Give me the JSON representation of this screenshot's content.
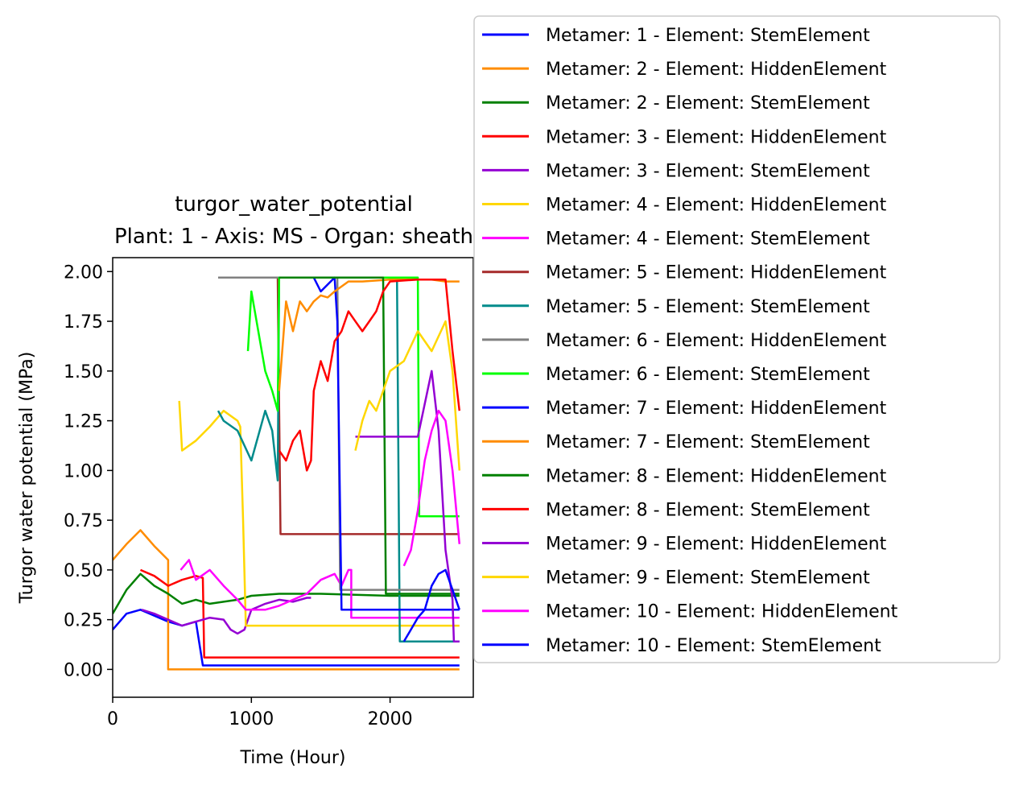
{
  "chart_data": {
    "type": "line",
    "title": "turgor_water_potential",
    "subtitle": "Plant: 1 - Axis: MS - Organ: sheath",
    "xlabel": "Time (Hour)",
    "ylabel": "Turgor water potential (MPa)",
    "xlim": [
      0,
      2600
    ],
    "ylim": [
      -0.14,
      2.07
    ],
    "xticks": [
      0,
      1000,
      2000
    ],
    "yticks": [
      0.0,
      0.25,
      0.5,
      0.75,
      1.0,
      1.25,
      1.5,
      1.75,
      2.0
    ],
    "xtick_labels": [
      "0",
      "1000",
      "2000"
    ],
    "ytick_labels": [
      "0.00",
      "0.25",
      "0.50",
      "0.75",
      "1.00",
      "1.25",
      "1.50",
      "1.75",
      "2.00"
    ],
    "grid": false,
    "legend_position": "right-outside-top",
    "series": [
      {
        "name": "Metamer: 1 - Element: StemElement",
        "color": "#0000ff",
        "points": [
          [
            0,
            0.2
          ],
          [
            100,
            0.28
          ],
          [
            200,
            0.3
          ],
          [
            300,
            0.27
          ],
          [
            400,
            0.24
          ],
          [
            500,
            0.22
          ],
          [
            600,
            0.24
          ],
          [
            650,
            0.02
          ],
          [
            700,
            0.02
          ],
          [
            2500,
            0.02
          ]
        ]
      },
      {
        "name": "Metamer: 2 - Element: HiddenElement",
        "color": "#ff8c00",
        "points": [
          [
            0,
            0.55
          ],
          [
            100,
            0.63
          ],
          [
            200,
            0.7
          ],
          [
            300,
            0.62
          ],
          [
            400,
            0.55
          ],
          [
            400,
            0.0
          ],
          [
            2500,
            0.0
          ]
        ]
      },
      {
        "name": "Metamer: 2 - Element: StemElement",
        "color": "#008000",
        "points": [
          [
            0,
            0.28
          ],
          [
            100,
            0.4
          ],
          [
            200,
            0.48
          ],
          [
            300,
            0.42
          ],
          [
            400,
            0.38
          ],
          [
            500,
            0.33
          ],
          [
            600,
            0.35
          ],
          [
            700,
            0.33
          ],
          [
            800,
            0.34
          ],
          [
            900,
            0.35
          ],
          [
            1000,
            0.37
          ],
          [
            1200,
            0.38
          ],
          [
            1500,
            0.38
          ],
          [
            2000,
            0.37
          ],
          [
            2500,
            0.37
          ]
        ]
      },
      {
        "name": "Metamer: 3 - Element: HiddenElement",
        "color": "#ff0000",
        "points": [
          [
            200,
            0.5
          ],
          [
            300,
            0.47
          ],
          [
            400,
            0.42
          ],
          [
            500,
            0.45
          ],
          [
            600,
            0.47
          ],
          [
            650,
            0.46
          ],
          [
            660,
            0.06
          ],
          [
            2500,
            0.06
          ]
        ]
      },
      {
        "name": "Metamer: 3 - Element: StemElement",
        "color": "#9400d3",
        "points": [
          [
            210,
            0.3
          ],
          [
            300,
            0.28
          ],
          [
            400,
            0.25
          ],
          [
            500,
            0.22
          ],
          [
            600,
            0.24
          ],
          [
            700,
            0.26
          ],
          [
            800,
            0.25
          ],
          [
            850,
            0.2
          ],
          [
            900,
            0.18
          ],
          [
            950,
            0.2
          ],
          [
            1000,
            0.3
          ],
          [
            1100,
            0.33
          ],
          [
            1200,
            0.35
          ],
          [
            1300,
            0.34
          ],
          [
            1400,
            0.36
          ],
          [
            1430,
            0.36
          ]
        ]
      },
      {
        "name": "Metamer: 4 - Element: HiddenElement",
        "color": "#ffd700",
        "points": [
          [
            480,
            1.35
          ],
          [
            500,
            1.1
          ],
          [
            600,
            1.15
          ],
          [
            700,
            1.22
          ],
          [
            800,
            1.3
          ],
          [
            900,
            1.25
          ],
          [
            920,
            1.22
          ],
          [
            940,
            0.75
          ],
          [
            960,
            0.22
          ],
          [
            1000,
            0.22
          ],
          [
            2500,
            0.22
          ]
        ]
      },
      {
        "name": "Metamer: 4 - Element: StemElement",
        "color": "#ff00ff",
        "points": [
          [
            490,
            0.5
          ],
          [
            550,
            0.55
          ],
          [
            600,
            0.45
          ],
          [
            700,
            0.5
          ],
          [
            800,
            0.42
          ],
          [
            900,
            0.35
          ],
          [
            960,
            0.3
          ],
          [
            1000,
            0.3
          ],
          [
            1100,
            0.3
          ],
          [
            1200,
            0.32
          ],
          [
            1300,
            0.35
          ],
          [
            1400,
            0.38
          ],
          [
            1500,
            0.45
          ],
          [
            1600,
            0.48
          ],
          [
            1650,
            0.42
          ],
          [
            1700,
            0.5
          ],
          [
            1720,
            0.5
          ],
          [
            1720,
            0.26
          ],
          [
            2500,
            0.26
          ]
        ]
      },
      {
        "name": "Metamer: 5 - Element: HiddenElement",
        "color": "#a52a2a",
        "points": [
          [
            760,
            1.97
          ],
          [
            1190,
            1.97
          ],
          [
            1210,
            0.68
          ],
          [
            2500,
            0.68
          ]
        ]
      },
      {
        "name": "Metamer: 5 - Element: StemElement",
        "color": "#008b8b",
        "points": [
          [
            760,
            1.3
          ],
          [
            800,
            1.25
          ],
          [
            900,
            1.2
          ],
          [
            1000,
            1.05
          ],
          [
            1100,
            1.3
          ],
          [
            1150,
            1.2
          ],
          [
            1190,
            0.95
          ],
          [
            1200,
            1.97
          ],
          [
            2000,
            1.97
          ],
          [
            2050,
            1.97
          ],
          [
            2070,
            0.14
          ],
          [
            2500,
            0.14
          ]
        ]
      },
      {
        "name": "Metamer: 6 - Element: HiddenElement",
        "color": "#808080",
        "points": [
          [
            760,
            1.97
          ],
          [
            1200,
            1.97
          ],
          [
            1500,
            1.97
          ],
          [
            1620,
            1.97
          ],
          [
            1640,
            0.4
          ],
          [
            2500,
            0.4
          ]
        ]
      },
      {
        "name": "Metamer: 6 - Element: StemElement",
        "color": "#00ff00",
        "points": [
          [
            975,
            1.6
          ],
          [
            1000,
            1.9
          ],
          [
            1050,
            1.7
          ],
          [
            1100,
            1.5
          ],
          [
            1150,
            1.4
          ],
          [
            1190,
            1.3
          ],
          [
            1200,
            1.97
          ],
          [
            2100,
            1.97
          ],
          [
            2200,
            1.97
          ],
          [
            2210,
            0.77
          ],
          [
            2500,
            0.77
          ]
        ]
      },
      {
        "name": "Metamer: 7 - Element: HiddenElement",
        "color": "#0000ff",
        "points": [
          [
            1200,
            1.97
          ],
          [
            1400,
            1.97
          ],
          [
            1450,
            1.97
          ],
          [
            1500,
            1.9
          ],
          [
            1600,
            1.97
          ],
          [
            1620,
            1.75
          ],
          [
            1650,
            0.3
          ],
          [
            2500,
            0.3
          ]
        ]
      },
      {
        "name": "Metamer: 7 - Element: StemElement",
        "color": "#ff8c00",
        "points": [
          [
            1200,
            1.4
          ],
          [
            1250,
            1.85
          ],
          [
            1300,
            1.7
          ],
          [
            1350,
            1.85
          ],
          [
            1400,
            1.8
          ],
          [
            1450,
            1.85
          ],
          [
            1500,
            1.88
          ],
          [
            1550,
            1.87
          ],
          [
            1600,
            1.9
          ],
          [
            1700,
            1.95
          ],
          [
            1800,
            1.95
          ],
          [
            2000,
            1.96
          ],
          [
            2300,
            1.96
          ],
          [
            2400,
            1.95
          ],
          [
            2500,
            1.95
          ]
        ]
      },
      {
        "name": "Metamer: 8 - Element: HiddenElement",
        "color": "#008000",
        "points": [
          [
            1200,
            1.97
          ],
          [
            1500,
            1.97
          ],
          [
            1900,
            1.97
          ],
          [
            1950,
            1.97
          ],
          [
            1970,
            0.38
          ],
          [
            2500,
            0.38
          ]
        ]
      },
      {
        "name": "Metamer: 8 - Element: StemElement",
        "color": "#ff0000",
        "points": [
          [
            1200,
            1.1
          ],
          [
            1250,
            1.05
          ],
          [
            1300,
            1.15
          ],
          [
            1350,
            1.2
          ],
          [
            1400,
            1.0
          ],
          [
            1430,
            1.05
          ],
          [
            1450,
            1.4
          ],
          [
            1500,
            1.55
          ],
          [
            1550,
            1.45
          ],
          [
            1600,
            1.65
          ],
          [
            1650,
            1.7
          ],
          [
            1700,
            1.8
          ],
          [
            1750,
            1.75
          ],
          [
            1800,
            1.7
          ],
          [
            1850,
            1.75
          ],
          [
            1900,
            1.8
          ],
          [
            1950,
            1.9
          ],
          [
            2000,
            1.95
          ],
          [
            2200,
            1.96
          ],
          [
            2400,
            1.96
          ],
          [
            2450,
            1.6
          ],
          [
            2500,
            1.3
          ]
        ]
      },
      {
        "name": "Metamer: 9 - Element: HiddenElement",
        "color": "#9400d3",
        "points": [
          [
            1750,
            1.17
          ],
          [
            1900,
            1.17
          ],
          [
            2100,
            1.17
          ],
          [
            2200,
            1.17
          ],
          [
            2300,
            1.5
          ],
          [
            2350,
            1.2
          ],
          [
            2400,
            0.6
          ],
          [
            2450,
            0.35
          ],
          [
            2460,
            0.14
          ],
          [
            2500,
            0.14
          ]
        ]
      },
      {
        "name": "Metamer: 9 - Element: StemElement",
        "color": "#ffd700",
        "points": [
          [
            1750,
            1.1
          ],
          [
            1800,
            1.25
          ],
          [
            1850,
            1.35
          ],
          [
            1900,
            1.3
          ],
          [
            1950,
            1.4
          ],
          [
            2000,
            1.5
          ],
          [
            2100,
            1.55
          ],
          [
            2200,
            1.7
          ],
          [
            2300,
            1.6
          ],
          [
            2400,
            1.75
          ],
          [
            2450,
            1.5
          ],
          [
            2500,
            1.0
          ]
        ]
      },
      {
        "name": "Metamer: 10 - Element: HiddenElement",
        "color": "#ff00ff",
        "points": [
          [
            2100,
            0.52
          ],
          [
            2150,
            0.6
          ],
          [
            2200,
            0.8
          ],
          [
            2250,
            1.05
          ],
          [
            2300,
            1.2
          ],
          [
            2350,
            1.3
          ],
          [
            2400,
            1.25
          ],
          [
            2450,
            1.0
          ],
          [
            2500,
            0.63
          ]
        ]
      },
      {
        "name": "Metamer: 10 - Element: StemElement",
        "color": "#0000ff",
        "points": [
          [
            2100,
            0.14
          ],
          [
            2150,
            0.2
          ],
          [
            2200,
            0.26
          ],
          [
            2250,
            0.3
          ],
          [
            2300,
            0.42
          ],
          [
            2350,
            0.48
          ],
          [
            2400,
            0.5
          ],
          [
            2450,
            0.4
          ],
          [
            2500,
            0.3
          ]
        ]
      }
    ]
  }
}
